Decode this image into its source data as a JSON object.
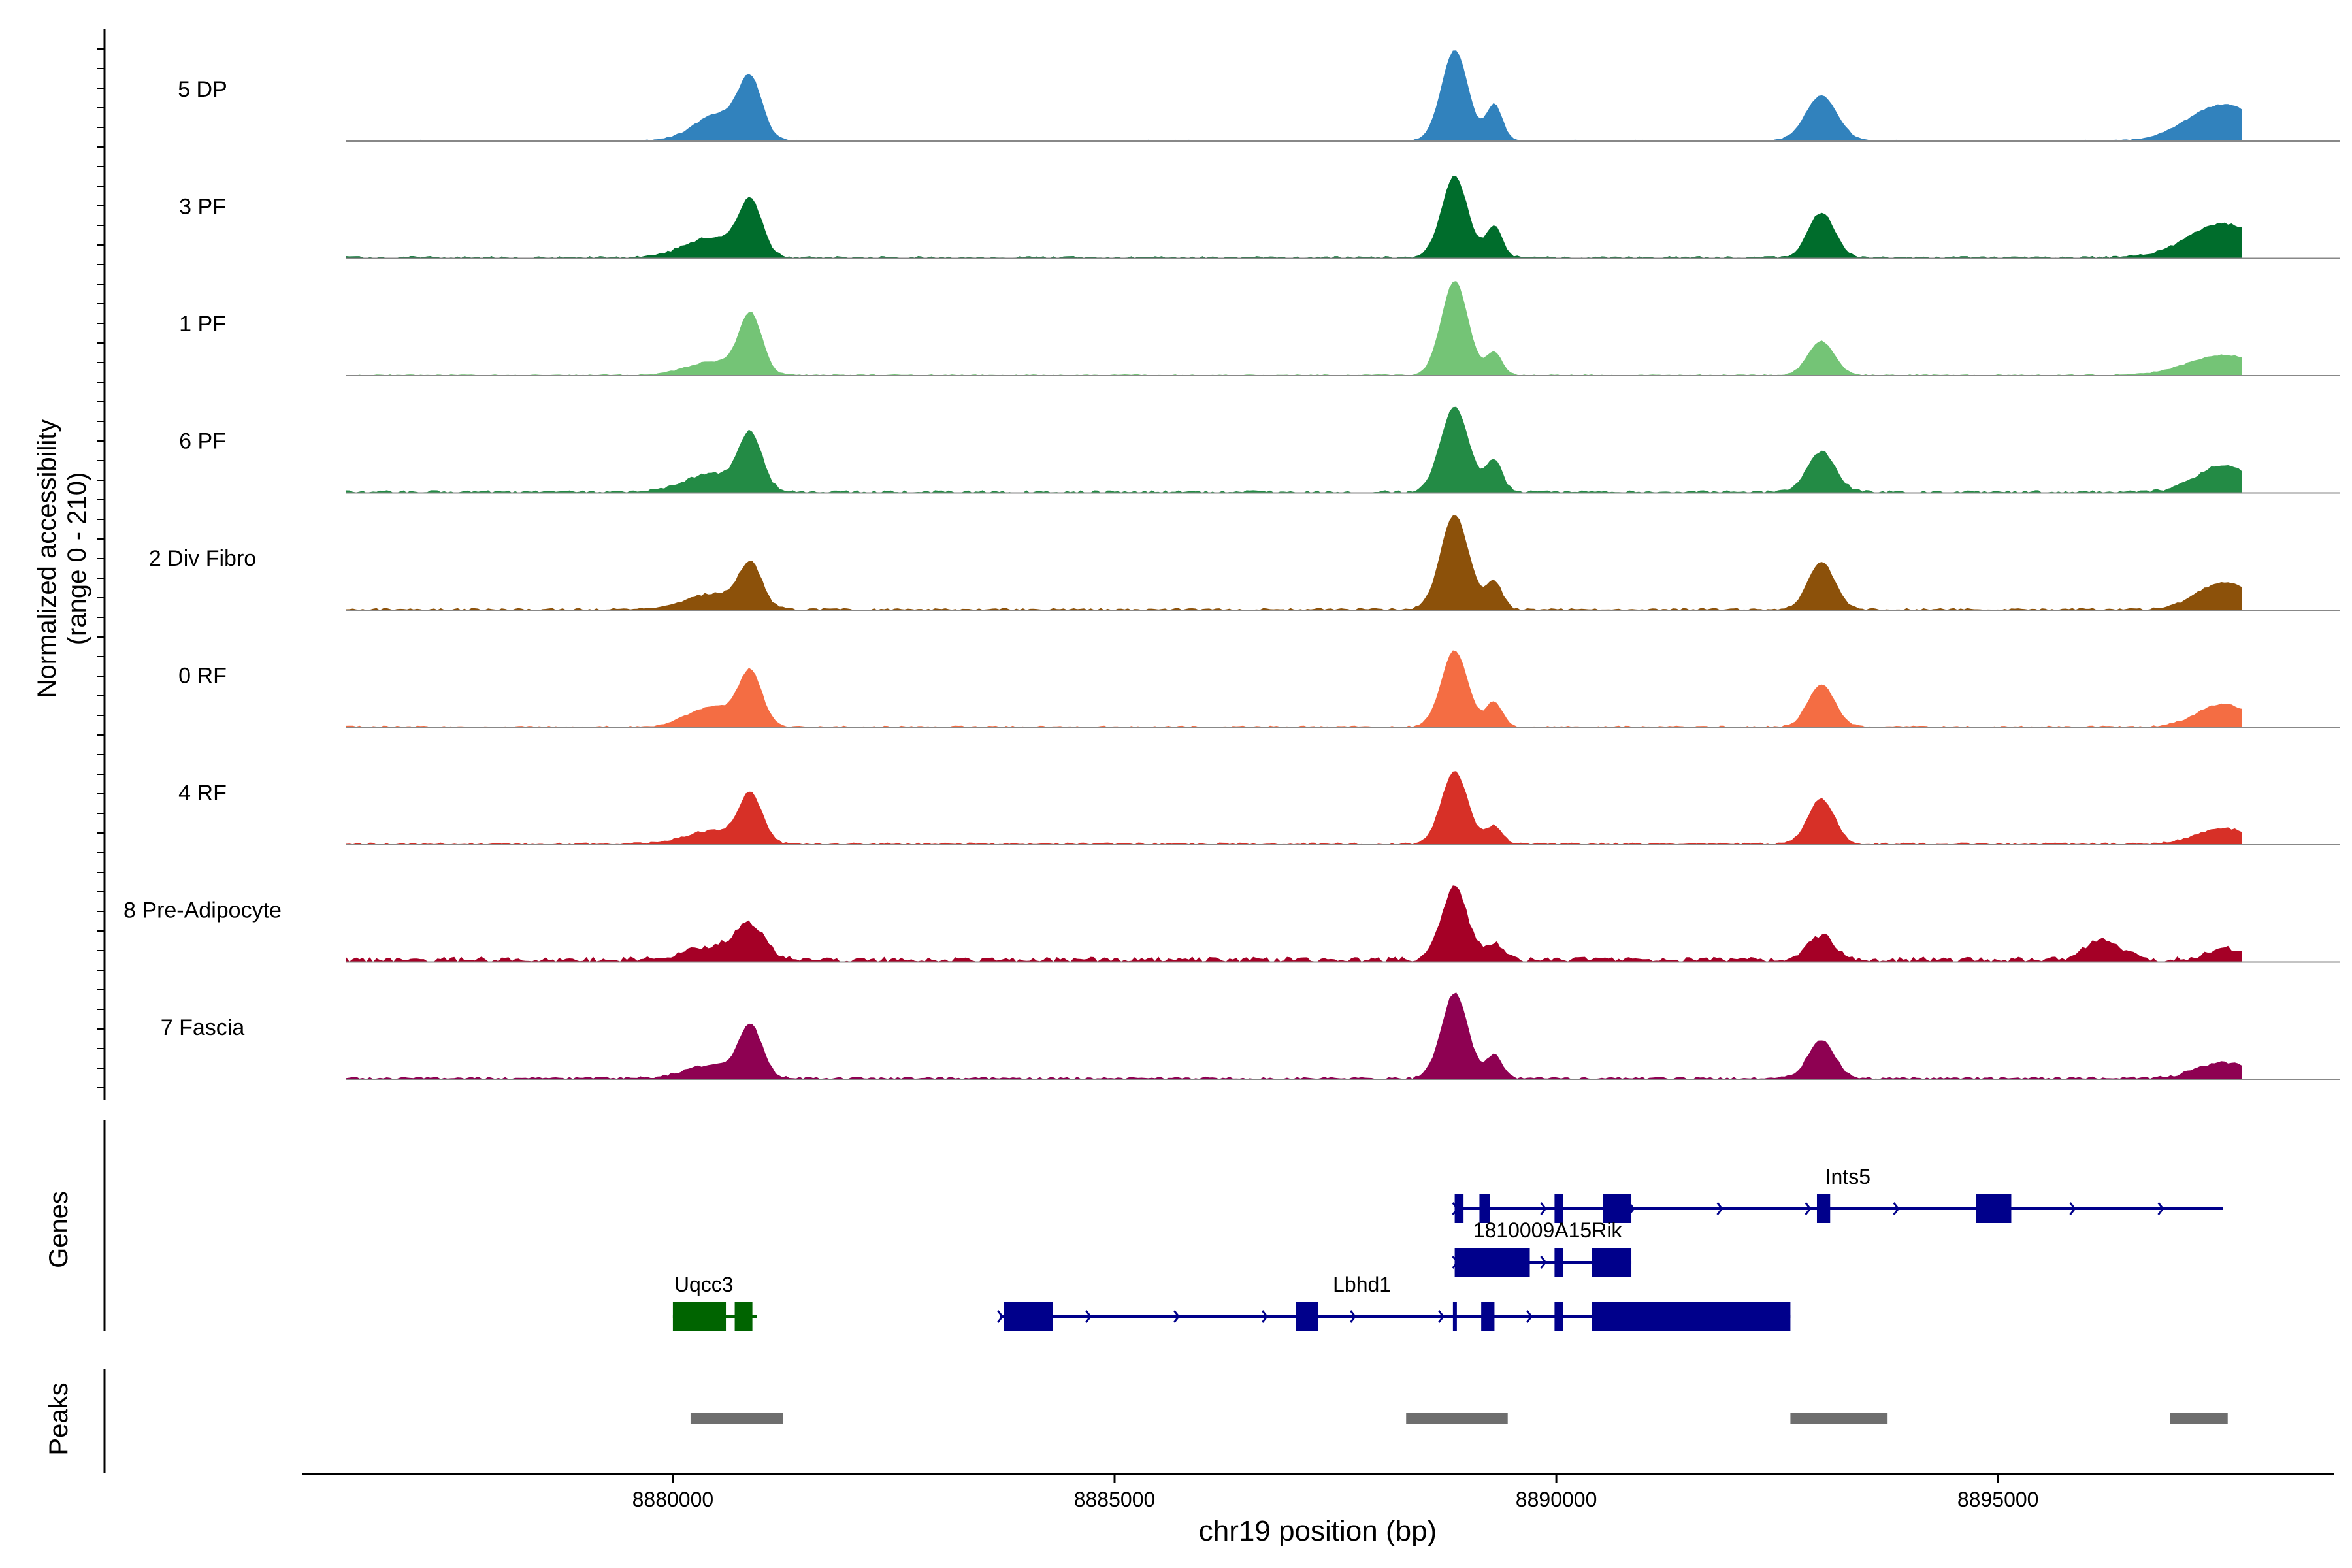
{
  "chart_data": {
    "type": "area",
    "title": "",
    "xlabel": "chr19 position (bp)",
    "ylabel": "Normalized accessibility",
    "ylabel_range": "(range 0 - 210)",
    "ylim": [
      0,
      210
    ],
    "xlim": [
      8875800,
      8898800
    ],
    "x_ticks": [
      8880000,
      8885000,
      8890000,
      8895000
    ],
    "x_tick_labels": [
      "8880000",
      "8885000",
      "8890000",
      "8895000"
    ],
    "genes_label": "Genes",
    "peaks_label": "Peaks",
    "tracks": [
      {
        "name": "5 DP",
        "color": "#3182bd",
        "peaks": [
          [
            8880530,
            60,
            280
          ],
          [
            8880880,
            120,
            130
          ],
          [
            8888850,
            200,
            150
          ],
          [
            8889300,
            80,
            90
          ],
          [
            8893000,
            100,
            180
          ],
          [
            8897550,
            80,
            400
          ]
        ],
        "noise": 3
      },
      {
        "name": "3 PF",
        "color": "#006d2c",
        "peaks": [
          [
            8880450,
            45,
            320
          ],
          [
            8880880,
            115,
            130
          ],
          [
            8888850,
            180,
            150
          ],
          [
            8889300,
            70,
            90
          ],
          [
            8893000,
            100,
            150
          ],
          [
            8897550,
            75,
            400
          ]
        ],
        "noise": 5
      },
      {
        "name": "1 PF",
        "color": "#74c476",
        "peaks": [
          [
            8880450,
            30,
            300
          ],
          [
            8880880,
            130,
            130
          ],
          [
            8888850,
            210,
            150
          ],
          [
            8889300,
            50,
            90
          ],
          [
            8893000,
            75,
            150
          ],
          [
            8897550,
            45,
            400
          ]
        ],
        "noise": 3
      },
      {
        "name": "6 PF",
        "color": "#238b45",
        "peaks": [
          [
            8880450,
            40,
            320
          ],
          [
            8880880,
            120,
            130
          ],
          [
            8888850,
            190,
            160
          ],
          [
            8889300,
            70,
            90
          ],
          [
            8893000,
            90,
            160
          ],
          [
            8897550,
            60,
            300
          ]
        ],
        "noise": 6
      },
      {
        "name": "2 Div Fibro",
        "color": "#8c510a",
        "peaks": [
          [
            8880450,
            35,
            300
          ],
          [
            8880880,
            95,
            130
          ],
          [
            8888850,
            210,
            160
          ],
          [
            8889300,
            60,
            90
          ],
          [
            8893000,
            105,
            150
          ],
          [
            8897550,
            60,
            300
          ]
        ],
        "noise": 5
      },
      {
        "name": "0 RF",
        "color": "#f46d43",
        "peaks": [
          [
            8880450,
            45,
            280
          ],
          [
            8880880,
            115,
            130
          ],
          [
            8888850,
            170,
            150
          ],
          [
            8889300,
            55,
            90
          ],
          [
            8893000,
            95,
            150
          ],
          [
            8897550,
            50,
            300
          ]
        ],
        "noise": 4
      },
      {
        "name": "4 RF",
        "color": "#d73027",
        "peaks": [
          [
            8880450,
            30,
            300
          ],
          [
            8880880,
            105,
            130
          ],
          [
            8888850,
            160,
            150
          ],
          [
            8889300,
            40,
            90
          ],
          [
            8893000,
            100,
            150
          ],
          [
            8897550,
            35,
            300
          ]
        ],
        "noise": 5
      },
      {
        "name": "8 Pre-Adipocyte",
        "color": "#a50026",
        "peaks": [
          [
            8880450,
            30,
            300
          ],
          [
            8880880,
            70,
            160
          ],
          [
            8888850,
            160,
            150
          ],
          [
            8889300,
            35,
            90
          ],
          [
            8893000,
            55,
            150
          ],
          [
            8896200,
            45,
            200
          ],
          [
            8897550,
            25,
            200
          ]
        ],
        "noise": 12
      },
      {
        "name": "7 Fascia",
        "color": "#8e0152",
        "peaks": [
          [
            8880450,
            30,
            300
          ],
          [
            8880880,
            110,
            130
          ],
          [
            8888850,
            190,
            150
          ],
          [
            8889300,
            50,
            90
          ],
          [
            8893000,
            85,
            150
          ],
          [
            8897550,
            35,
            300
          ]
        ],
        "noise": 6
      }
    ],
    "genes": [
      {
        "name": "Ints5",
        "color": "#00008b",
        "strand": "+",
        "row": 0,
        "start": 8888850,
        "end": 8897550,
        "label_pos": 8893300,
        "exons": [
          [
            8888850,
            8888950
          ],
          [
            8889130,
            8889250
          ],
          [
            8889980,
            8890080
          ],
          [
            8890530,
            8890850
          ],
          [
            8892950,
            8893100
          ],
          [
            8894750,
            8895150
          ]
        ]
      },
      {
        "name": "1810009A15Rik",
        "color": "#00008b",
        "strand": "+",
        "row": 1,
        "start": 8888850,
        "end": 8890850,
        "label_pos": 8889900,
        "exons": [
          [
            8888850,
            8889700
          ],
          [
            8889980,
            8890080
          ],
          [
            8890400,
            8890850
          ]
        ]
      },
      {
        "name": "Uqcc3",
        "color": "#006400",
        "strand": "-",
        "row": 2,
        "start": 8880000,
        "end": 8880950,
        "label_pos": 8880350,
        "exons": [
          [
            8880000,
            8880600
          ],
          [
            8880700,
            8880900
          ]
        ]
      },
      {
        "name": "Lbhd1",
        "color": "#00008b",
        "strand": "+",
        "row": 2,
        "start": 8883700,
        "end": 8892650,
        "label_pos": 8887800,
        "exons": [
          [
            8883750,
            8884300
          ],
          [
            8887050,
            8887300
          ],
          [
            8888830,
            8888870
          ],
          [
            8889150,
            8889300
          ],
          [
            8889980,
            8890080
          ],
          [
            8890400,
            8892650
          ]
        ]
      }
    ],
    "peak_ranges": [
      [
        8880200,
        8881250
      ],
      [
        8888300,
        8889450
      ],
      [
        8892650,
        8893750
      ],
      [
        8896950,
        8897600
      ]
    ]
  }
}
